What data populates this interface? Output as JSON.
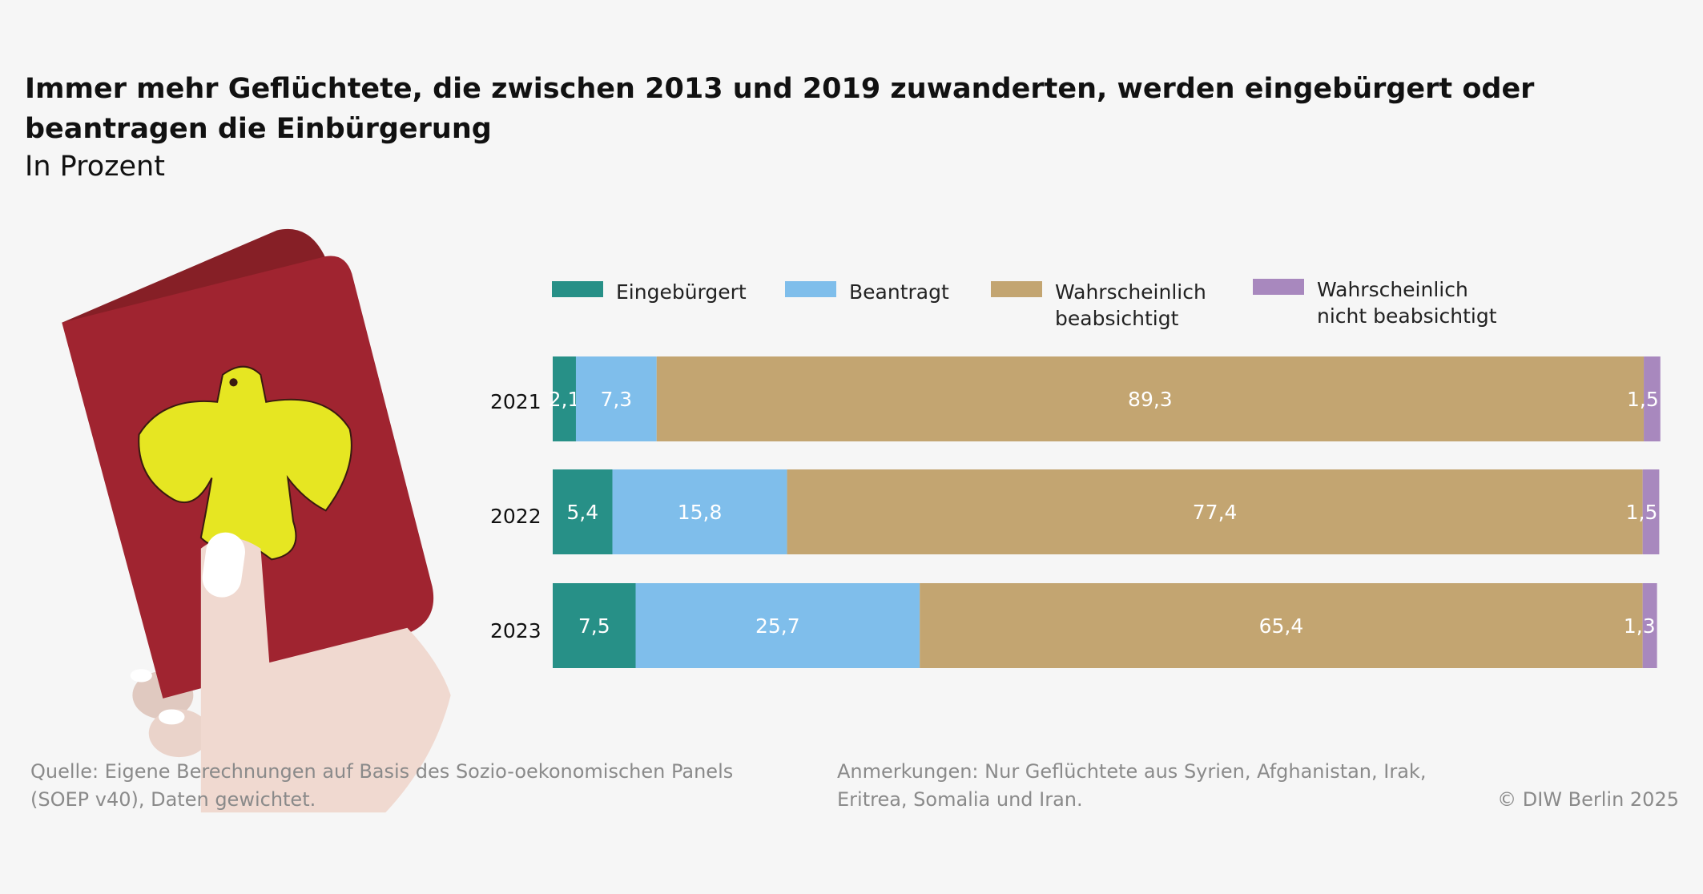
{
  "title": "Immer mehr Geflüchtete, die zwischen 2013 und 2019 zuwanderten, werden eingebürgert oder beantragen die Einbürgerung",
  "subtitle": "In Prozent",
  "chart_data": {
    "type": "bar",
    "orientation": "horizontal",
    "stacked": true,
    "title": "Immer mehr Geflüchtete, die zwischen 2013 und 2019 zuwanderten, werden eingebürgert oder beantragen die Einbürgerung",
    "subtitle": "In Prozent",
    "categories": [
      "2021",
      "2022",
      "2023"
    ],
    "series": [
      {
        "name": "Eingebürgert",
        "color": "#279087",
        "values": [
          2.1,
          5.4,
          7.5
        ],
        "labels": [
          "2,1",
          "5,4",
          "7,5"
        ]
      },
      {
        "name": "Beantragt",
        "color": "#7fbeeb",
        "values": [
          7.3,
          15.8,
          25.7
        ],
        "labels": [
          "7,3",
          "15,8",
          "25,7"
        ]
      },
      {
        "name": "Wahrscheinlich beabsichtigt",
        "name_lines": [
          "Wahrscheinlich",
          "beabsichtigt"
        ],
        "color": "#c3a571",
        "values": [
          89.3,
          77.4,
          65.4
        ],
        "labels": [
          "89,3",
          "77,4",
          "65,4"
        ]
      },
      {
        "name": "Wahrscheinlich nicht beabsichtigt",
        "name_lines": [
          "Wahrscheinlich",
          "nicht beabsichtigt"
        ],
        "color": "#a888be",
        "values": [
          1.5,
          1.5,
          1.3
        ],
        "labels": [
          "1,5",
          "1,5",
          "1,3"
        ]
      }
    ],
    "xlim": [
      0,
      100
    ],
    "grid": false,
    "legend": "top"
  },
  "footer": {
    "source_line1": "Quelle: Eigene Berechnungen auf Basis des Sozio-oekonomischen Panels",
    "source_line2": "(SOEP v40), Daten gewichtet.",
    "notes_line1": "Anmerkungen: Nur Geflüchtete aus Syrien, Afghanistan, Irak,",
    "notes_line2": "Eritrea, Somalia und Iran.",
    "copyright": "© DIW Berlin 2025"
  }
}
